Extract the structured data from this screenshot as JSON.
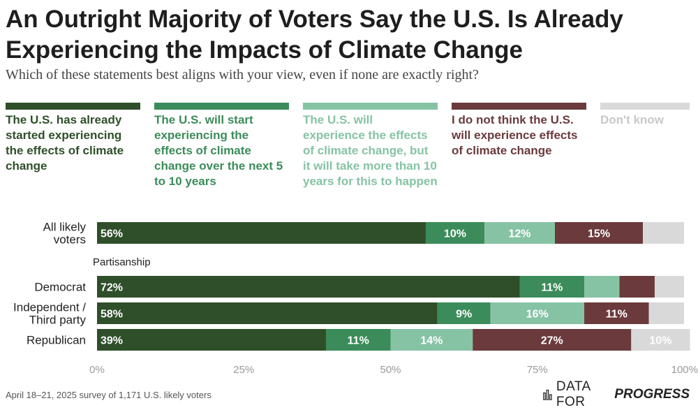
{
  "header": {
    "title": "An Outright Majority of Voters Say the U.S. Is Already Experiencing the Impacts of Climate Change",
    "subtitle": "Which of these statements best aligns with your view, even if none are exactly right?"
  },
  "colors": {
    "s1": "#2f4f2a",
    "s2": "#3b8c5a",
    "s3": "#86c3a5",
    "s4": "#6b3a3c",
    "s5": "#d9d9d9"
  },
  "footer": {
    "note": "April 18–21, 2025 survey of 1,171 U.S. likely voters",
    "brand_a": "DATA FOR",
    "brand_b": "PROGRESS",
    "brand_icon": "bar-chart-icon"
  },
  "chart_data": {
    "type": "bar",
    "orientation": "horizontal",
    "stacked": true,
    "xlim": [
      0,
      100
    ],
    "x_ticks": [
      "0%",
      "25%",
      "50%",
      "75%",
      "100%"
    ],
    "group_label": "Partisanship",
    "categories": [
      [
        "All likely",
        "voters"
      ],
      [
        "Democrat"
      ],
      [
        "Independent /",
        "Third party"
      ],
      [
        "Republican"
      ]
    ],
    "series": [
      {
        "name": "The U.S. has already started experiencing the effects of climate change",
        "values": [
          56,
          72,
          58,
          39
        ],
        "labels": [
          "56%",
          "72%",
          "58%",
          "39%"
        ]
      },
      {
        "name": "The U.S. will start experiencing the effects of climate change over the next 5 to 10 years",
        "values": [
          10,
          11,
          9,
          11
        ],
        "labels": [
          "10%",
          "11%",
          "9%",
          "11%"
        ]
      },
      {
        "name": "The U.S. will experience the effects of climate change, but it will take more than 10 years for this to happen",
        "values": [
          12,
          6,
          16,
          14
        ],
        "labels": [
          "12%",
          "",
          "16%",
          "14%"
        ]
      },
      {
        "name": "I do not think the U.S. will experience effects of climate change",
        "values": [
          15,
          6,
          11,
          27
        ],
        "labels": [
          "15%",
          "",
          "11%",
          "27%"
        ]
      },
      {
        "name": "Don't know",
        "values": [
          7,
          5,
          6,
          10
        ],
        "labels": [
          "",
          "",
          "",
          "10%"
        ]
      }
    ]
  }
}
